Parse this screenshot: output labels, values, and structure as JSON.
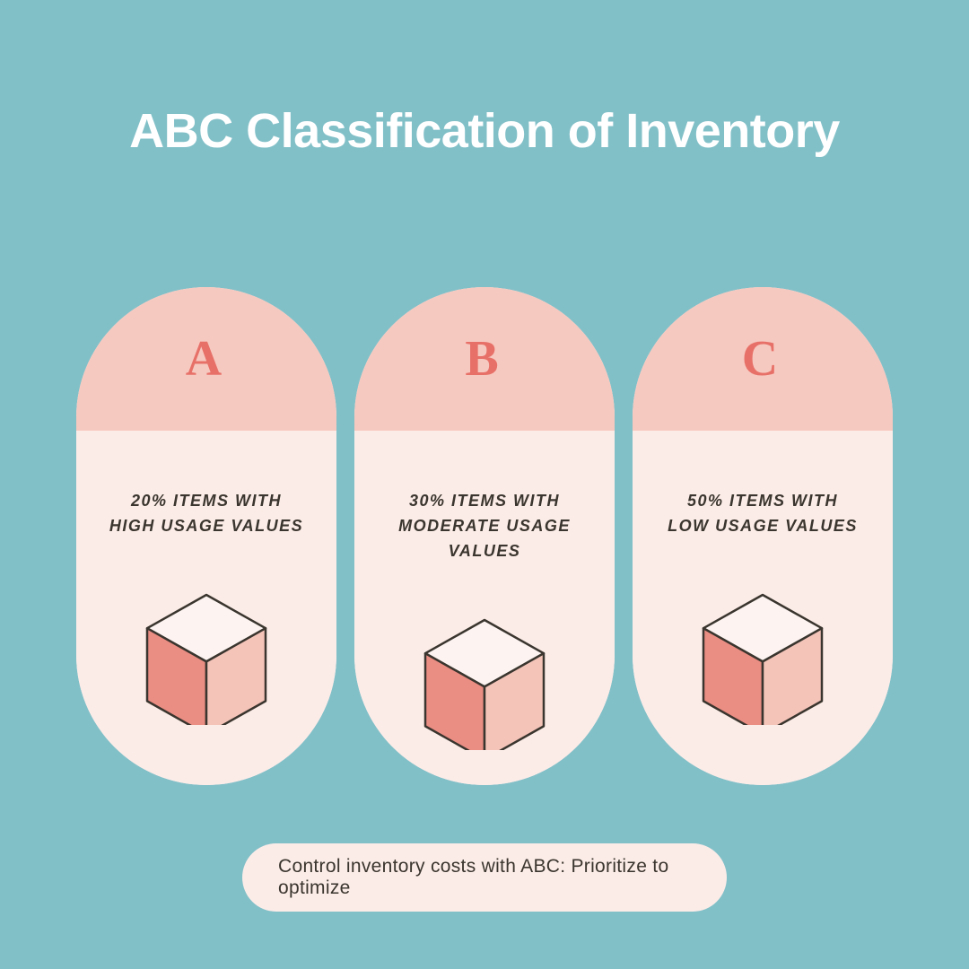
{
  "background_color": "#82c0c8",
  "title": {
    "text": "ABC Classification of Inventory",
    "color": "#ffffff",
    "fontsize": 54
  },
  "pill_style": {
    "header_bg": "#f6c9c0",
    "body_bg": "#fcece8",
    "letter_color": "#e77169",
    "letter_fontsize": 56,
    "desc_color": "#3a352e",
    "desc_fontsize": 18
  },
  "pills": [
    {
      "letter": "A",
      "desc": "20% ITEMS WITH HIGH USAGE VALUES"
    },
    {
      "letter": "B",
      "desc": "30% ITEMS WITH MODERATE USAGE VALUES"
    },
    {
      "letter": "C",
      "desc": "50% ITEMS WITH LOW USAGE VALUES"
    }
  ],
  "cube": {
    "stroke": "#3a352e",
    "stroke_width": 2.5,
    "top_fill": "#fdf4f1",
    "left_fill": "#ea8d83",
    "right_fill": "#f4c4b9",
    "size": 140
  },
  "footer": {
    "text": "Control inventory costs with ABC: Prioritize to optimize",
    "bg": "#fcece8",
    "color": "#3a352e",
    "fontsize": 21
  }
}
